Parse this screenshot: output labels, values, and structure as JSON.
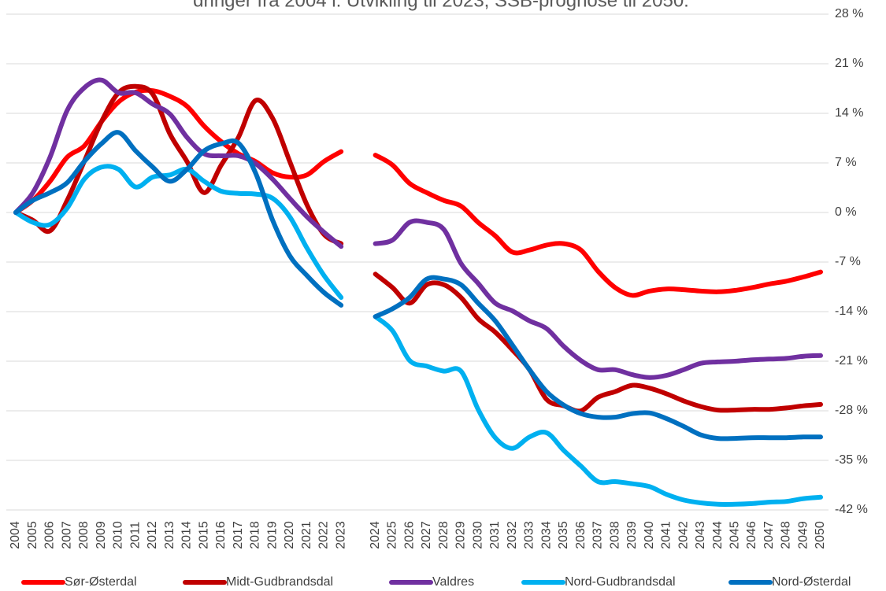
{
  "chart_data": {
    "type": "line",
    "title": "dringer fra 2004 i. Utvikling til 2023, SSB-prognose til 2050.",
    "categories": [
      "2004",
      "2005",
      "2006",
      "2007",
      "2008",
      "2009",
      "2010",
      "2011",
      "2012",
      "2013",
      "2014",
      "2015",
      "2016",
      "2017",
      "2018",
      "2019",
      "2020",
      "2021",
      "2022",
      "2023",
      null,
      "2024",
      "2025",
      "2026",
      "2027",
      "2028",
      "2029",
      "2030",
      "2031",
      "2032",
      "2033",
      "2034",
      "2035",
      "2036",
      "2037",
      "2038",
      "2039",
      "2040",
      "2041",
      "2042",
      "2043",
      "2044",
      "2045",
      "2046",
      "2047",
      "2048",
      "2049",
      "2050"
    ],
    "ylim": [
      -42,
      28
    ],
    "yticks": [
      {
        "value": -42,
        "label": "-42 %"
      },
      {
        "value": -35,
        "label": "-35 %"
      },
      {
        "value": -28,
        "label": "-28 %"
      },
      {
        "value": -21,
        "label": "-21 %"
      },
      {
        "value": -14,
        "label": "-14 %"
      },
      {
        "value": -7,
        "label": "-7 %"
      },
      {
        "value": 0,
        "label": "0 %"
      },
      {
        "value": 7,
        "label": "7 %"
      },
      {
        "value": 14,
        "label": "14 %"
      },
      {
        "value": 21,
        "label": "21 %"
      },
      {
        "value": 28,
        "label": "28 %"
      }
    ],
    "grid": true,
    "legend": "bottom",
    "series": [
      {
        "name": "Sør-Østerdal",
        "color": "#ff0000",
        "values": [
          0,
          1.7,
          4.4,
          7.8,
          9.4,
          12.8,
          15.6,
          17,
          17.2,
          16.4,
          15,
          12.2,
          10,
          8.3,
          7.2,
          5.6,
          5,
          5.3,
          7.2,
          8.6,
          null,
          8.1,
          6.7,
          4.1,
          2.8,
          1.7,
          0.9,
          -1.4,
          -3.3,
          -5.6,
          -5.3,
          -4.6,
          -4.4,
          -5.3,
          -8.3,
          -10.6,
          -11.7,
          -11.1,
          -10.8,
          -10.9,
          -11.1,
          -11.2,
          -11,
          -10.6,
          -10.1,
          -9.7,
          -9.1,
          -8.4
        ]
      },
      {
        "name": "Midt-Gudbrandsdal",
        "color": "#c00000",
        "values": [
          0,
          -1.1,
          -2.6,
          1.7,
          7.2,
          12.8,
          16.9,
          17.8,
          16.7,
          11.1,
          7.2,
          2.8,
          6.7,
          10.6,
          15.8,
          13.3,
          7.2,
          1.1,
          -3.1,
          -4.4,
          null,
          -8.7,
          -10.6,
          -12.8,
          -10.2,
          -10.2,
          -12,
          -15,
          -16.9,
          -19.4,
          -22.2,
          -26.4,
          -27.3,
          -28,
          -26.1,
          -25.3,
          -24.4,
          -24.8,
          -25.6,
          -26.6,
          -27.4,
          -27.9,
          -27.9,
          -27.8,
          -27.8,
          -27.6,
          -27.3,
          -27.1
        ]
      },
      {
        "name": "Valdres",
        "color": "#7030a0",
        "values": [
          0,
          2.8,
          7.8,
          14.4,
          17.6,
          18.7,
          16.9,
          16.9,
          15.3,
          13.9,
          10.6,
          8.3,
          8,
          8,
          6.9,
          4.7,
          2,
          -0.6,
          -2.8,
          -4.8,
          null,
          -4.4,
          -3.9,
          -1.4,
          -1.4,
          -2.4,
          -7.2,
          -10,
          -12.8,
          -13.9,
          -15.3,
          -16.4,
          -18.9,
          -20.9,
          -22.2,
          -22.2,
          -22.9,
          -23.3,
          -23,
          -22.2,
          -21.3,
          -21.1,
          -21,
          -20.8,
          -20.7,
          -20.6,
          -20.3,
          -20.2
        ]
      },
      {
        "name": "Nord-Gudbrandsdal",
        "color": "#00b0f0",
        "values": [
          0,
          -1.4,
          -1.7,
          0.6,
          4.7,
          6.4,
          6.1,
          3.6,
          5,
          5.3,
          6.1,
          4.4,
          3,
          2.7,
          2.6,
          2,
          -0.6,
          -5,
          -8.9,
          -12,
          null,
          -14.7,
          -16.7,
          -20.9,
          -21.7,
          -22.4,
          -22.4,
          -27.8,
          -31.8,
          -33.3,
          -31.7,
          -31.1,
          -33.6,
          -35.8,
          -38,
          -38,
          -38.3,
          -38.7,
          -39.8,
          -40.6,
          -41,
          -41.2,
          -41.2,
          -41.1,
          -40.9,
          -40.8,
          -40.4,
          -40.2
        ]
      },
      {
        "name": "Nord-Østerdal",
        "color": "#0070c0",
        "values": [
          0,
          1.7,
          2.8,
          4.2,
          7.2,
          9.7,
          11.3,
          8.7,
          6.4,
          4.4,
          6.1,
          8.7,
          9.7,
          9.8,
          5.6,
          -1.1,
          -6.1,
          -8.9,
          -11.3,
          -13.1,
          null,
          -14.7,
          -13.6,
          -12,
          -9.4,
          -9.4,
          -10.2,
          -12.8,
          -15.3,
          -18.7,
          -22.2,
          -25.3,
          -27.2,
          -28.4,
          -28.9,
          -28.9,
          -28.4,
          -28.3,
          -29.1,
          -30.2,
          -31.4,
          -31.9,
          -31.9,
          -31.8,
          -31.8,
          -31.8,
          -31.7,
          -31.7
        ]
      }
    ]
  }
}
